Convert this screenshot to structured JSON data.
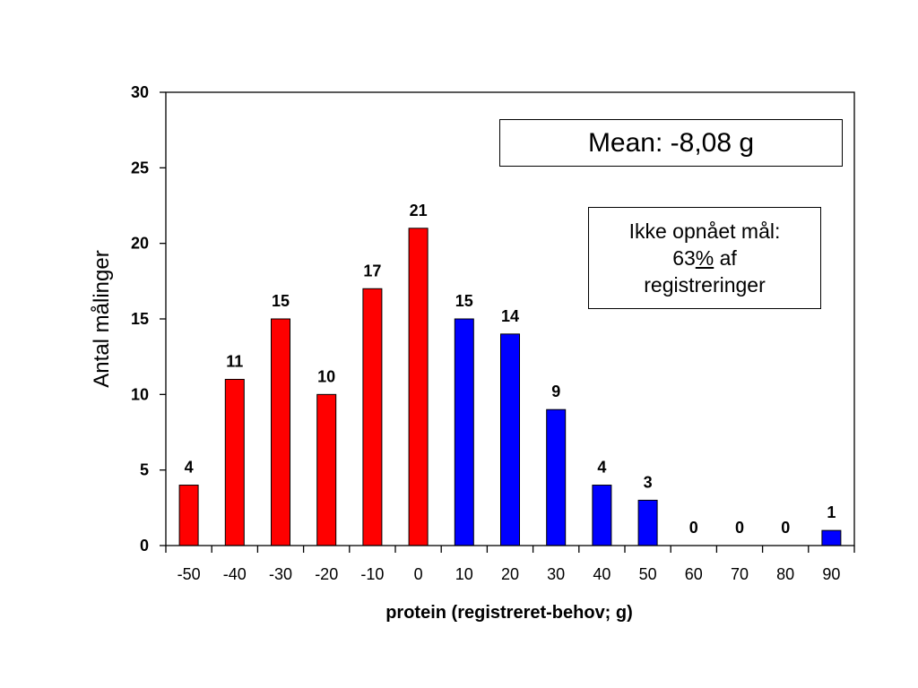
{
  "chart_data": {
    "type": "bar",
    "title": "",
    "xlabel": "protein (registreret-behov; g)",
    "ylabel": "Antal målinger",
    "ylim": [
      0,
      30
    ],
    "yticks": [
      "0",
      "5",
      "10",
      "15",
      "20",
      "25",
      "30"
    ],
    "categories": [
      "-50",
      "-40",
      "-30",
      "-20",
      "-10",
      "0",
      "10",
      "20",
      "30",
      "40",
      "50",
      "60",
      "70",
      "80",
      "90"
    ],
    "values": [
      4,
      11,
      15,
      10,
      17,
      21,
      15,
      14,
      9,
      4,
      3,
      0,
      0,
      0,
      1
    ],
    "value_labels": [
      "4",
      "11",
      "15",
      "10",
      "17",
      "21",
      "15",
      "14",
      "9",
      "4",
      "3",
      "0",
      "0",
      "0",
      "1"
    ],
    "bar_colors": [
      "#ff0000",
      "#ff0000",
      "#ff0000",
      "#ff0000",
      "#ff0000",
      "#ff0000",
      "#0000ff",
      "#0000ff",
      "#0000ff",
      "#0000ff",
      "#0000ff",
      "#0000ff",
      "#0000ff",
      "#0000ff",
      "#0000ff"
    ],
    "grid": false,
    "legend": "none"
  },
  "annotations": {
    "mean": "Mean: -8,08 g",
    "goal_line1": "Ikke opnået mål:",
    "goal_pct_number": "63",
    "goal_pct_sign": "%",
    "goal_af": " af",
    "goal_line3": "registreringer"
  }
}
